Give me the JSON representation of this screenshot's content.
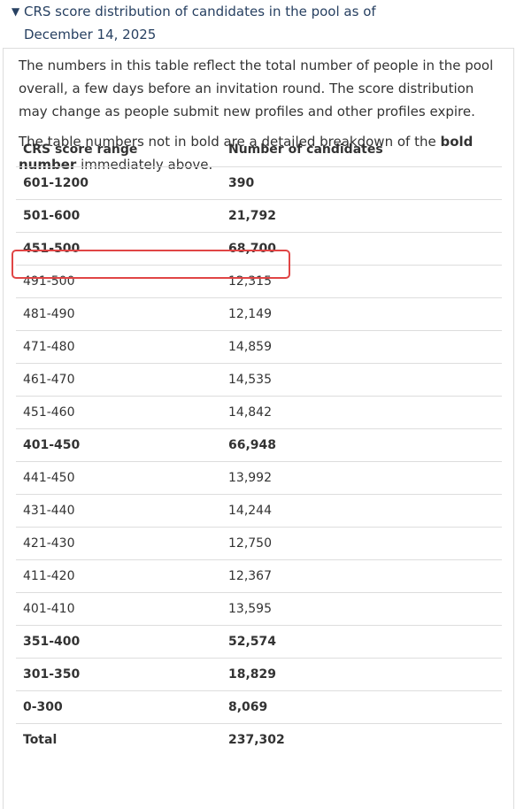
{
  "summary": {
    "arrow": "▼",
    "line1": "CRS score distribution of candidates in the pool as of",
    "line2": "December 14, 2025"
  },
  "intro": {
    "p1_line1": "The numbers in this table reflect the total number of people in the pool",
    "p1_line2": "overall, a few days before an invitation round. The score distribution",
    "p1_line3": "may change as people submit new profiles and other profiles expire.",
    "p2_part1": "The table numbers not in bold are a detailed breakdown of the",
    "p2_bold1": "bold",
    "p2_bold2": "number",
    "p2_part2": "immediately above."
  },
  "table": {
    "headers": [
      "CRS score range",
      "Number of candidates"
    ],
    "rows": [
      {
        "range": "601-1200",
        "count": "390",
        "bold": true
      },
      {
        "range": "501-600",
        "count": "21,792",
        "bold": true
      },
      {
        "range": "451-500",
        "count": "68,700",
        "bold": true
      },
      {
        "range": "491-500",
        "count": "12,315",
        "bold": false
      },
      {
        "range": "481-490",
        "count": "12,149",
        "bold": false
      },
      {
        "range": "471-480",
        "count": "14,859",
        "bold": false
      },
      {
        "range": "461-470",
        "count": "14,535",
        "bold": false
      },
      {
        "range": "451-460",
        "count": "14,842",
        "bold": false
      },
      {
        "range": "401-450",
        "count": "66,948",
        "bold": true
      },
      {
        "range": "441-450",
        "count": "13,992",
        "bold": false
      },
      {
        "range": "431-440",
        "count": "14,244",
        "bold": false
      },
      {
        "range": "421-430",
        "count": "12,750",
        "bold": false
      },
      {
        "range": "411-420",
        "count": "12,367",
        "bold": false
      },
      {
        "range": "401-410",
        "count": "13,595",
        "bold": false
      },
      {
        "range": "351-400",
        "count": "52,574",
        "bold": true
      },
      {
        "range": "301-350",
        "count": "18,829",
        "bold": true
      },
      {
        "range": "0-300",
        "count": "8,069",
        "bold": true
      },
      {
        "range": "Total",
        "count": "237,302",
        "bold": true
      }
    ]
  },
  "colors": {
    "link": "#284162",
    "text": "#333333",
    "border": "#dddddd",
    "highlight": "#e04545"
  }
}
